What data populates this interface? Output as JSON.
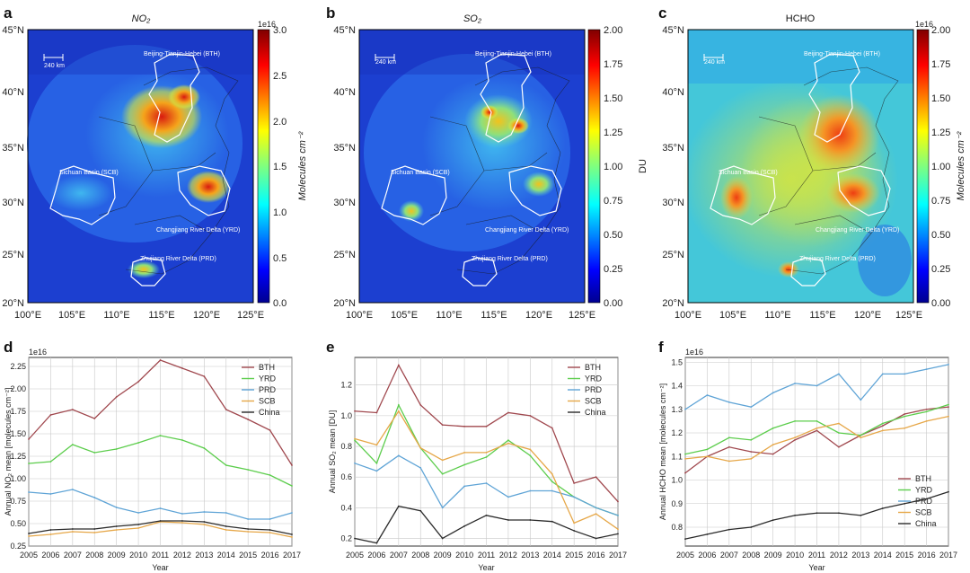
{
  "maps": [
    {
      "letter": "a",
      "title": "NO₂",
      "unit_label": "Molecules cm⁻²",
      "scale_exp": "1e16",
      "cbar_ticks": [
        "0.0",
        "0.5",
        "1.0",
        "1.5",
        "2.0",
        "2.5",
        "3.0"
      ],
      "scalebar_label": "240 km",
      "lat_labels": [
        "45°N",
        "40°N",
        "35°N",
        "30°N",
        "25°N",
        "20°N"
      ],
      "lon_labels": [
        "100°E",
        "105°E",
        "110°E",
        "115°E",
        "120°E",
        "125°E"
      ],
      "region_labels": [
        "Beijing-Tianjin-Hebei (BTH)",
        "Sichuan Basin (SCB)",
        "Changjiang River Delta (YRD)",
        "Zhujiang River Delta (PRD)"
      ],
      "colormap": "jet"
    },
    {
      "letter": "b",
      "title": "SO₂",
      "unit_label": "DU",
      "scale_exp": "",
      "cbar_ticks": [
        "0.00",
        "0.25",
        "0.50",
        "0.75",
        "1.00",
        "1.25",
        "1.50",
        "1.75",
        "2.00"
      ],
      "scalebar_label": "240 km",
      "lat_labels": [
        "45°N",
        "40°N",
        "35°N",
        "30°N",
        "25°N",
        "20°N"
      ],
      "lon_labels": [
        "100°E",
        "105°E",
        "110°E",
        "115°E",
        "120°E",
        "125°E"
      ],
      "region_labels": [
        "Beijing-Tianjin-Hebei (BTH)",
        "Sichuan Basin (SCB)",
        "Changjiang River Delta (YRD)",
        "Zhujiang River Delta (PRD)"
      ],
      "colormap": "jet"
    },
    {
      "letter": "c",
      "title": "HCHO",
      "unit_label": "Molecules cm⁻²",
      "scale_exp": "1e16",
      "cbar_ticks": [
        "0.00",
        "0.25",
        "0.50",
        "0.75",
        "1.00",
        "1.25",
        "1.50",
        "1.75",
        "2.00"
      ],
      "scalebar_label": "240 km",
      "lat_labels": [
        "45°N",
        "40°N",
        "35°N",
        "30°N",
        "25°N",
        "20°N"
      ],
      "lon_labels": [
        "100°E",
        "105°E",
        "110°E",
        "115°E",
        "120°E",
        "125°E"
      ],
      "region_labels": [
        "Beijing-Tianjin-Hebei (BTH)",
        "Sichuan Basin (SCB)",
        "Changjiang River Delta (YRD)",
        "Zhujiang River Delta (PRD)"
      ],
      "colormap": "jet"
    }
  ],
  "colors": {
    "BTH": "#a0484e",
    "YRD": "#5ccd4c",
    "PRD": "#5fa4d6",
    "SCB": "#e6a748",
    "China": "#2a2a2a"
  },
  "chart_data": [
    {
      "letter": "d",
      "type": "line",
      "scale_exp": "1e16",
      "xlabel": "Year",
      "ylabel": "Annual NO₂ mean [molecules cm⁻²]",
      "x": [
        2005,
        2006,
        2007,
        2008,
        2009,
        2010,
        2011,
        2012,
        2013,
        2014,
        2015,
        2016,
        2017
      ],
      "x_tick_labels": [
        "2005",
        "2006",
        "2007",
        "2008",
        "2009",
        "2010",
        "2011",
        "2012",
        "2013",
        "2014",
        "2015",
        "2016",
        "2017"
      ],
      "ylim": [
        0.25,
        2.35
      ],
      "y_ticks": [
        0.25,
        0.5,
        0.75,
        1.0,
        1.25,
        1.5,
        1.75,
        2.0,
        2.25
      ],
      "y_tick_labels": [
        "0.25",
        "0.50",
        "0.75",
        "1.00",
        "1.25",
        "1.50",
        "1.75",
        "2.00",
        "2.25"
      ],
      "legend": "top-right",
      "series": [
        {
          "name": "BTH",
          "values": [
            1.44,
            1.71,
            1.77,
            1.67,
            1.91,
            2.08,
            2.32,
            2.23,
            2.14,
            1.77,
            1.66,
            1.54,
            1.15
          ]
        },
        {
          "name": "YRD",
          "values": [
            1.17,
            1.19,
            1.38,
            1.29,
            1.33,
            1.4,
            1.48,
            1.43,
            1.34,
            1.15,
            1.1,
            1.04,
            0.92
          ]
        },
        {
          "name": "PRD",
          "values": [
            0.85,
            0.83,
            0.88,
            0.79,
            0.68,
            0.62,
            0.67,
            0.61,
            0.63,
            0.62,
            0.55,
            0.55,
            0.62
          ]
        },
        {
          "name": "SCB",
          "values": [
            0.36,
            0.38,
            0.41,
            0.4,
            0.43,
            0.45,
            0.52,
            0.51,
            0.49,
            0.43,
            0.41,
            0.4,
            0.35
          ]
        },
        {
          "name": "China",
          "values": [
            0.39,
            0.43,
            0.44,
            0.44,
            0.47,
            0.49,
            0.53,
            0.53,
            0.52,
            0.47,
            0.44,
            0.43,
            0.38
          ]
        }
      ]
    },
    {
      "letter": "e",
      "type": "line",
      "scale_exp": "",
      "xlabel": "Year",
      "ylabel": "Annual SO₂ mean [DU]",
      "x": [
        2005,
        2006,
        2007,
        2008,
        2009,
        2010,
        2011,
        2012,
        2013,
        2014,
        2015,
        2016,
        2017
      ],
      "x_tick_labels": [
        "2005",
        "2006",
        "2007",
        "2008",
        "2009",
        "2010",
        "2011",
        "2012",
        "2013",
        "2014",
        "2015",
        "2016",
        "2017"
      ],
      "ylim": [
        0.15,
        1.38
      ],
      "y_ticks": [
        0.2,
        0.4,
        0.6,
        0.8,
        1.0,
        1.2
      ],
      "y_tick_labels": [
        "0.2",
        "0.4",
        "0.6",
        "0.8",
        "1.0",
        "1.2"
      ],
      "legend": "top-right",
      "series": [
        {
          "name": "BTH",
          "values": [
            1.03,
            1.02,
            1.33,
            1.07,
            0.94,
            0.93,
            0.93,
            1.02,
            1.0,
            0.92,
            0.56,
            0.6,
            0.44
          ]
        },
        {
          "name": "YRD",
          "values": [
            0.84,
            0.69,
            1.07,
            0.79,
            0.62,
            0.68,
            0.73,
            0.84,
            0.74,
            0.57,
            0.47,
            0.4,
            0.35
          ]
        },
        {
          "name": "PRD",
          "values": [
            0.69,
            0.64,
            0.74,
            0.66,
            0.4,
            0.54,
            0.56,
            0.47,
            0.51,
            0.51,
            0.47,
            0.4,
            0.35
          ]
        },
        {
          "name": "SCB",
          "values": [
            0.85,
            0.81,
            1.03,
            0.79,
            0.71,
            0.76,
            0.76,
            0.82,
            0.78,
            0.62,
            0.3,
            0.36,
            0.26
          ]
        },
        {
          "name": "China",
          "values": [
            0.2,
            0.17,
            0.41,
            0.38,
            0.2,
            0.28,
            0.35,
            0.32,
            0.32,
            0.31,
            0.25,
            0.2,
            0.23
          ]
        }
      ]
    },
    {
      "letter": "f",
      "type": "line",
      "scale_exp": "1e16",
      "xlabel": "Year",
      "ylabel": "Annual HCHO mean [molecules cm⁻²]",
      "x": [
        2005,
        2006,
        2007,
        2008,
        2009,
        2010,
        2011,
        2012,
        2013,
        2014,
        2015,
        2016,
        2017
      ],
      "x_tick_labels": [
        "2005",
        "2006",
        "2007",
        "2008",
        "2009",
        "2010",
        "2011",
        "2012",
        "2013",
        "2014",
        "2015",
        "2016",
        "2017"
      ],
      "ylim": [
        0.72,
        1.52
      ],
      "y_ticks": [
        0.8,
        0.9,
        1.0,
        1.1,
        1.2,
        1.3,
        1.4,
        1.5
      ],
      "y_tick_labels": [
        "0.8",
        "0.9",
        "1.0",
        "1.1",
        "1.2",
        "1.3",
        "1.4",
        "1.5"
      ],
      "legend": "bottom-right",
      "series": [
        {
          "name": "BTH",
          "values": [
            1.03,
            1.1,
            1.14,
            1.12,
            1.11,
            1.17,
            1.21,
            1.14,
            1.19,
            1.23,
            1.28,
            1.3,
            1.31
          ]
        },
        {
          "name": "YRD",
          "values": [
            1.11,
            1.13,
            1.18,
            1.17,
            1.22,
            1.25,
            1.25,
            1.2,
            1.19,
            1.24,
            1.27,
            1.29,
            1.32
          ]
        },
        {
          "name": "PRD",
          "values": [
            1.3,
            1.36,
            1.33,
            1.31,
            1.37,
            1.41,
            1.4,
            1.45,
            1.34,
            1.45,
            1.45,
            1.47,
            1.49
          ]
        },
        {
          "name": "SCB",
          "values": [
            1.09,
            1.1,
            1.08,
            1.09,
            1.15,
            1.18,
            1.22,
            1.24,
            1.18,
            1.21,
            1.22,
            1.25,
            1.27
          ]
        },
        {
          "name": "China",
          "values": [
            0.75,
            0.77,
            0.79,
            0.8,
            0.83,
            0.85,
            0.86,
            0.86,
            0.85,
            0.88,
            0.9,
            0.92,
            0.95
          ]
        }
      ]
    }
  ]
}
